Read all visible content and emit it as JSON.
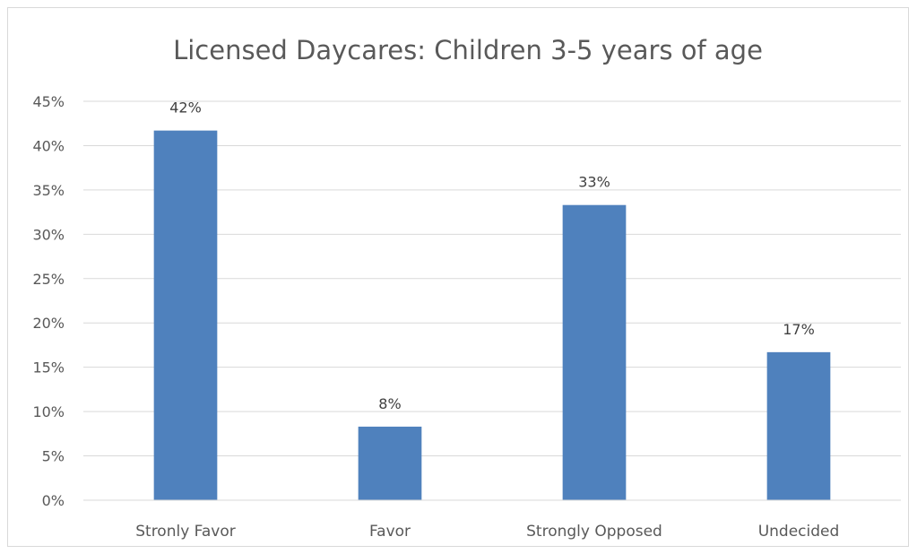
{
  "chart_data": {
    "type": "bar",
    "title": "Licensed Daycares:  Children 3-5 years of age",
    "xlabel": "",
    "ylabel": "",
    "categories": [
      "Stronly Favor",
      "Favor",
      "Strongly Opposed",
      "Undecided"
    ],
    "values": [
      41.7,
      8.3,
      33.3,
      16.7
    ],
    "data_labels": [
      "42%",
      "8%",
      "33%",
      "17%"
    ],
    "ylim": [
      0,
      45
    ],
    "yticks": [
      0,
      5,
      10,
      15,
      20,
      25,
      30,
      35,
      40,
      45
    ],
    "ytick_labels": [
      "0%",
      "5%",
      "10%",
      "15%",
      "20%",
      "25%",
      "30%",
      "35%",
      "40%",
      "45%"
    ],
    "grid": true,
    "legend": "none",
    "bar_color": "#4f81bd",
    "grid_color": "#d9d9d9"
  }
}
